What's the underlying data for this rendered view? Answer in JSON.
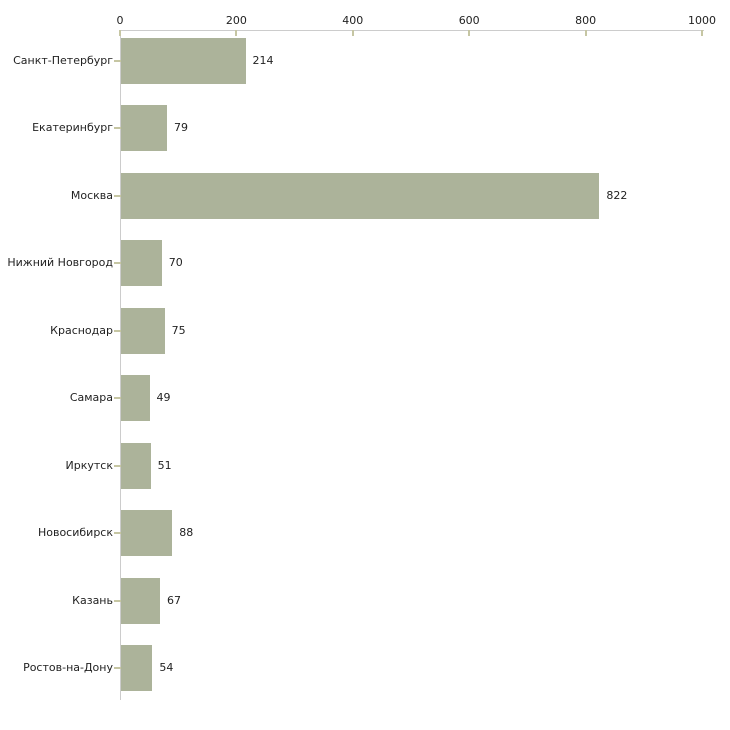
{
  "chart_data": {
    "type": "bar",
    "orientation": "horizontal",
    "title": "",
    "xlabel": "",
    "ylabel": "",
    "categories": [
      "Санкт-Петербург",
      "Екатеринбург",
      "Москва",
      "Нижний Новгород",
      "Краснодар",
      "Самара",
      "Иркутск",
      "Новосибирск",
      "Казань",
      "Ростов-на-Дону"
    ],
    "values": [
      214,
      79,
      822,
      70,
      75,
      49,
      51,
      88,
      67,
      54
    ],
    "value_labels": [
      "214",
      "79",
      "822",
      "70",
      "75",
      "49",
      "51",
      "88",
      "67",
      "54"
    ],
    "xlim": [
      0,
      1000
    ],
    "x_ticks": [
      0,
      200,
      400,
      600,
      800,
      1000
    ],
    "x_tick_labels": [
      "0",
      "200",
      "400",
      "600",
      "800",
      "1000"
    ],
    "axis_position": "top",
    "grid": false,
    "legend": null,
    "colors": {
      "bar_fill": "#acb39a",
      "axis_line": "#cccccc",
      "tick_mark": "#c6c6a3",
      "text": "#222222"
    }
  }
}
